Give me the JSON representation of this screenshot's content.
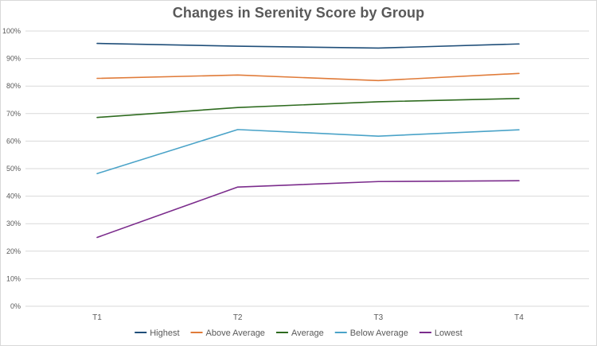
{
  "chart_data": {
    "type": "line",
    "title": "Changes in Serenity Score by Group",
    "categories": [
      "T1",
      "T2",
      "T3",
      "T4"
    ],
    "ylim": [
      0,
      100
    ],
    "yticks": [
      "0%",
      "10%",
      "20%",
      "30%",
      "40%",
      "50%",
      "60%",
      "70%",
      "80%",
      "90%",
      "100%"
    ],
    "ytick_values": [
      0,
      10,
      20,
      30,
      40,
      50,
      60,
      70,
      80,
      90,
      100
    ],
    "y_unit": "%",
    "grid": true,
    "legend_position": "bottom",
    "series": [
      {
        "name": "Highest",
        "color": "#1f4e79",
        "values": [
          95.5,
          94.5,
          93.8,
          95.3
        ]
      },
      {
        "name": "Above Average",
        "color": "#e07b39",
        "values": [
          82.8,
          84.0,
          82.0,
          84.6
        ]
      },
      {
        "name": "Average",
        "color": "#2e6b1f",
        "values": [
          68.6,
          72.2,
          74.3,
          75.5
        ]
      },
      {
        "name": "Below Average",
        "color": "#4aa3c8",
        "values": [
          48.2,
          64.2,
          61.8,
          64.1
        ]
      },
      {
        "name": "Lowest",
        "color": "#7b2c8c",
        "values": [
          25.0,
          43.3,
          45.3,
          45.6
        ]
      }
    ]
  }
}
